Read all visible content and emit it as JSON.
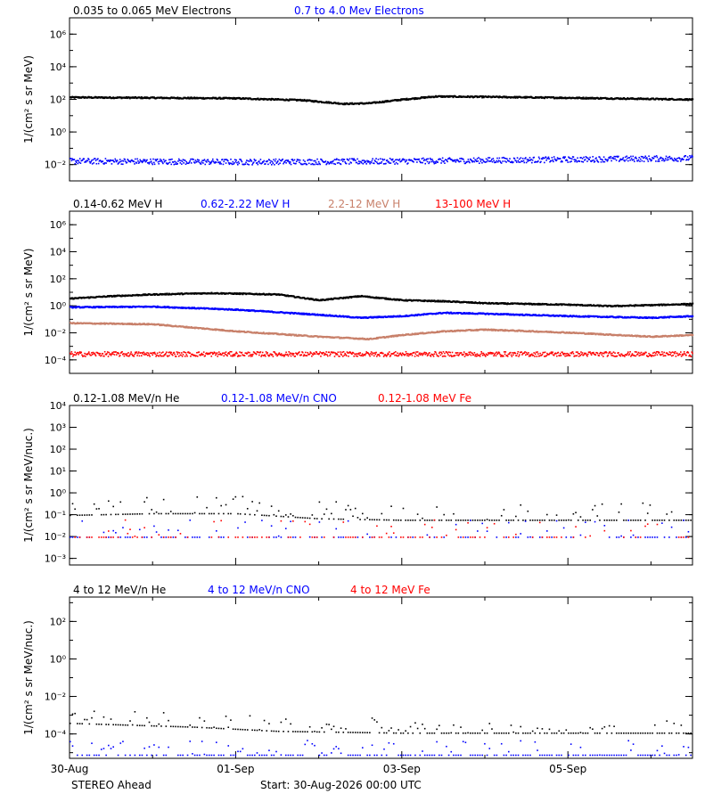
{
  "footer": {
    "spacecraft": "STEREO Ahead",
    "start": "Start: 30-Aug-2026 00:00 UTC"
  },
  "colors": {
    "black": "#000000",
    "blue": "#0000ff",
    "brown": "#c8806a",
    "red": "#ff0000"
  },
  "chart_data": [
    {
      "type": "scatter",
      "title": "",
      "ylabel": "1/(cm² s sr MeV)",
      "yscale": "log",
      "ylim": [
        0.001,
        10000000
      ],
      "yticks": [
        {
          "value": 0.01,
          "label": "10⁻²"
        },
        {
          "value": 1,
          "label": "10⁰"
        },
        {
          "value": 100,
          "label": "10²"
        },
        {
          "value": 10000,
          "label": "10⁴"
        },
        {
          "value": 1000000,
          "label": "10⁶"
        }
      ],
      "xlim_days": [
        0,
        7.5
      ],
      "series": [
        {
          "name": "0.035 to 0.065 MeV Electrons",
          "color": "#000000",
          "x": [
            0,
            1,
            2,
            2.8,
            3.3,
            3.6,
            4,
            4.4,
            5,
            6,
            7,
            7.5
          ],
          "y": [
            150,
            140,
            130,
            100,
            60,
            65,
            110,
            170,
            160,
            140,
            120,
            110
          ]
        },
        {
          "name": "0.7 to 4.0 Mev Electrons",
          "color": "#0000ff",
          "x": [
            0,
            2,
            3.5,
            5,
            6.5,
            7.5
          ],
          "y": [
            0.018,
            0.016,
            0.017,
            0.02,
            0.024,
            0.027
          ]
        }
      ]
    },
    {
      "type": "scatter",
      "title": "",
      "ylabel": "1/(cm² s sr MeV)",
      "yscale": "log",
      "ylim": [
        1e-05,
        10000000
      ],
      "yticks": [
        {
          "value": 0.0001,
          "label": "10⁻⁴"
        },
        {
          "value": 0.01,
          "label": "10⁻²"
        },
        {
          "value": 1,
          "label": "10⁰"
        },
        {
          "value": 100,
          "label": "10²"
        },
        {
          "value": 10000,
          "label": "10⁴"
        },
        {
          "value": 1000000,
          "label": "10⁶"
        }
      ],
      "xlim_days": [
        0,
        7.5
      ],
      "series": [
        {
          "name": "0.14-0.62 MeV H",
          "color": "#000000",
          "x": [
            0,
            0.5,
            1,
            1.7,
            2.5,
            3,
            3.5,
            4,
            4.5,
            5,
            6,
            6.5,
            7,
            7.5
          ],
          "y": [
            4,
            6,
            8,
            10,
            8,
            3,
            6,
            3,
            2.5,
            1.8,
            1.4,
            1.1,
            1.3,
            1.6
          ]
        },
        {
          "name": "0.62-2.22 MeV H",
          "color": "#0000ff",
          "x": [
            0,
            1,
            2,
            3,
            3.5,
            4,
            4.5,
            5,
            6,
            7,
            7.5
          ],
          "y": [
            0.9,
            1.0,
            0.6,
            0.25,
            0.15,
            0.2,
            0.35,
            0.3,
            0.2,
            0.15,
            0.2
          ]
        },
        {
          "name": "2.2-12 MeV H",
          "color": "#c8806a",
          "x": [
            0,
            1,
            2,
            3,
            3.6,
            4,
            4.5,
            5,
            6,
            7,
            7.5
          ],
          "y": [
            0.06,
            0.05,
            0.015,
            0.006,
            0.004,
            0.008,
            0.015,
            0.02,
            0.012,
            0.006,
            0.008
          ]
        },
        {
          "name": "13-100 MeV H",
          "color": "#ff0000",
          "x": [
            0,
            2,
            4,
            6,
            7.5
          ],
          "y": [
            0.0003,
            0.0003,
            0.0003,
            0.0003,
            0.0003
          ]
        }
      ]
    },
    {
      "type": "scatter",
      "title": "",
      "ylabel": "1/(cm² s sr MeV/nuc.)",
      "yscale": "log",
      "ylim": [
        0.0005,
        10000
      ],
      "yticks": [
        {
          "value": 0.001,
          "label": "10⁻³"
        },
        {
          "value": 0.01,
          "label": "10⁻²"
        },
        {
          "value": 0.1,
          "label": "10⁻¹"
        },
        {
          "value": 1,
          "label": "10⁰"
        },
        {
          "value": 10,
          "label": "10¹"
        },
        {
          "value": 100,
          "label": "10²"
        },
        {
          "value": 1000,
          "label": "10³"
        },
        {
          "value": 10000,
          "label": "10⁴"
        }
      ],
      "xlim_days": [
        0,
        7.5
      ],
      "series": [
        {
          "name": "0.12-1.08 MeV/n He",
          "color": "#000000",
          "x": [
            0,
            1,
            2,
            3,
            4,
            5,
            6,
            7,
            7.5
          ],
          "y": [
            0.1,
            0.12,
            0.12,
            0.07,
            0.06,
            0.06,
            0.06,
            0.06,
            0.06
          ]
        },
        {
          "name": "0.12-1.08 MeV/n CNO",
          "color": "#0000ff",
          "x": [
            0,
            2,
            4,
            6,
            7.5
          ],
          "y": [
            0.01,
            0.01,
            0.01,
            0.01,
            0.01
          ]
        },
        {
          "name": "0.12-1.08 MeV Fe",
          "color": "#ff0000",
          "x": [
            0,
            2,
            4,
            6,
            7.5
          ],
          "y": [
            0.01,
            0.01,
            0.01,
            0.01,
            0.01
          ]
        }
      ]
    },
    {
      "type": "scatter",
      "title": "",
      "ylabel": "1/(cm² s sr MeV/nuc.)",
      "yscale": "log",
      "ylim": [
        5e-06,
        2000
      ],
      "yticks": [
        {
          "value": 0.0001,
          "label": "10⁻⁴"
        },
        {
          "value": 0.01,
          "label": "10⁻²"
        },
        {
          "value": 1,
          "label": "10⁰"
        },
        {
          "value": 100,
          "label": "10²"
        }
      ],
      "xlim_days": [
        0,
        7.5
      ],
      "xticks": [
        {
          "value": 0,
          "label": "30-Aug"
        },
        {
          "value": 2,
          "label": "01-Sep"
        },
        {
          "value": 4,
          "label": "03-Sep"
        },
        {
          "value": 6,
          "label": "05-Sep"
        }
      ],
      "series": [
        {
          "name": "4 to 12 MeV/n He",
          "color": "#000000",
          "x": [
            0,
            1.5,
            2.5,
            4,
            6,
            7.5
          ],
          "y": [
            0.0004,
            0.00025,
            0.00015,
            0.00012,
            0.00012,
            0.00012
          ]
        },
        {
          "name": "4 to 12 MeV/n CNO",
          "color": "#0000ff",
          "x": [
            0,
            2,
            4,
            7.5
          ],
          "y": [
            8e-06,
            8e-06,
            8e-06,
            8e-06
          ]
        },
        {
          "name": "4 to 12 MeV Fe",
          "color": "#ff0000",
          "x": [],
          "y": []
        }
      ]
    }
  ]
}
